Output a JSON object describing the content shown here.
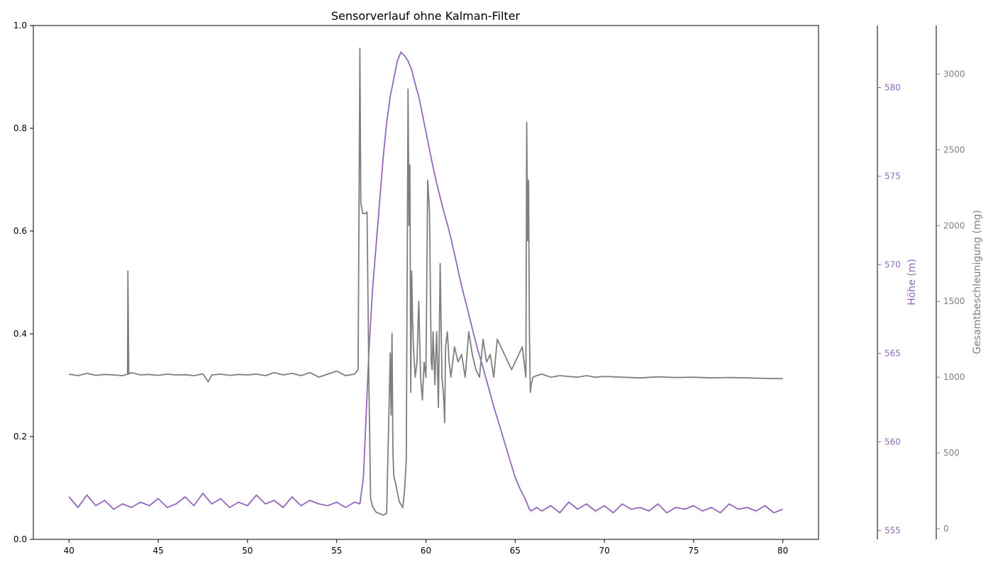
{
  "chart_data": {
    "type": "line",
    "title": "Sensorverlauf ohne Kalman-Filter",
    "xlabel": "",
    "ylabel": "",
    "x_range": [
      38,
      82
    ],
    "x_ticks": [
      40,
      45,
      50,
      55,
      60,
      65,
      70,
      75,
      80
    ],
    "y_left": {
      "range": [
        0,
        1
      ],
      "ticks": [
        0.0,
        0.2,
        0.4,
        0.6,
        0.8,
        1.0
      ],
      "tick_labels": [
        "0.0",
        "0.2",
        "0.4",
        "0.6",
        "0.8",
        "1.0"
      ]
    },
    "y_altitude": {
      "label": "Höhe (m)",
      "range": [
        554.5,
        583.5
      ],
      "ticks": [
        555,
        560,
        565,
        570,
        575,
        580
      ],
      "color": "#9467bd"
    },
    "y_acceleration": {
      "label": "Gesamtbeschleunigung (mg)",
      "range": [
        -70,
        3320
      ],
      "ticks": [
        0,
        500,
        1000,
        1500,
        2000,
        2500,
        3000
      ],
      "color": "#7f7f7f"
    },
    "grid": false,
    "legend": "none",
    "series": [
      {
        "axis": "y_altitude",
        "color": "#9467bd",
        "x": [
          40.0,
          40.5,
          41.0,
          41.5,
          42.0,
          42.5,
          43.0,
          43.5,
          44.0,
          44.5,
          45.0,
          45.5,
          46.0,
          46.5,
          47.0,
          47.5,
          48.0,
          48.5,
          49.0,
          49.5,
          50.0,
          50.5,
          51.0,
          51.5,
          52.0,
          52.5,
          53.0,
          53.5,
          54.0,
          54.5,
          55.0,
          55.5,
          56.0,
          56.3,
          56.5,
          56.8,
          57.0,
          57.2,
          57.4,
          57.6,
          57.8,
          58.0,
          58.2,
          58.4,
          58.6,
          58.8,
          59.0,
          59.2,
          59.4,
          59.6,
          59.8,
          60.0,
          60.2,
          60.4,
          60.6,
          60.8,
          61.0,
          61.2,
          61.4,
          61.6,
          61.8,
          62.0,
          62.3,
          62.6,
          62.9,
          63.2,
          63.5,
          63.8,
          64.1,
          64.4,
          64.7,
          65.0,
          65.3,
          65.6,
          65.8,
          65.9,
          66.2,
          66.5,
          67.0,
          67.5,
          68.0,
          68.5,
          69.0,
          69.5,
          70.0,
          70.5,
          71.0,
          71.5,
          72.0,
          72.5,
          73.0,
          73.5,
          74.0,
          74.5,
          75.0,
          75.5,
          76.0,
          76.5,
          77.0,
          77.5,
          78.0,
          78.5,
          79.0,
          79.5,
          80.0
        ],
        "values": [
          556.9,
          556.3,
          557.0,
          556.4,
          556.7,
          556.2,
          556.5,
          556.3,
          556.6,
          556.4,
          556.8,
          556.3,
          556.5,
          556.9,
          556.4,
          557.1,
          556.5,
          556.8,
          556.3,
          556.6,
          556.4,
          557.0,
          556.5,
          556.7,
          556.3,
          556.9,
          556.4,
          556.7,
          556.5,
          556.4,
          556.6,
          556.3,
          556.6,
          556.5,
          558.0,
          565.0,
          568.5,
          571.0,
          573.5,
          576.0,
          578.0,
          579.5,
          580.5,
          581.5,
          582.0,
          581.8,
          581.5,
          581.0,
          580.2,
          579.5,
          578.5,
          577.5,
          576.5,
          575.5,
          574.6,
          573.8,
          573.0,
          572.3,
          571.5,
          570.6,
          569.7,
          568.8,
          567.6,
          566.4,
          565.2,
          564.2,
          563.1,
          562.0,
          561.0,
          560.0,
          559.0,
          558.0,
          557.3,
          556.7,
          556.2,
          556.1,
          556.3,
          556.1,
          556.4,
          556.0,
          556.6,
          556.2,
          556.5,
          556.1,
          556.4,
          556.0,
          556.5,
          556.2,
          556.3,
          556.1,
          556.5,
          556.0,
          556.3,
          556.2,
          556.4,
          556.1,
          556.3,
          556.0,
          556.5,
          556.2,
          556.3,
          556.1,
          556.4,
          556.0,
          556.2
        ]
      },
      {
        "axis": "y_acceleration",
        "color": "#7f7f7f",
        "x": [
          40.0,
          40.5,
          41.0,
          41.5,
          42.0,
          42.5,
          43.0,
          43.28,
          43.3,
          43.35,
          43.5,
          44.0,
          44.5,
          45.0,
          45.5,
          46.0,
          46.5,
          47.0,
          47.5,
          47.8,
          48.0,
          48.5,
          49.0,
          49.5,
          50.0,
          50.5,
          51.0,
          51.5,
          52.0,
          52.5,
          53.0,
          53.5,
          54.0,
          54.5,
          55.0,
          55.5,
          56.0,
          56.2,
          56.3,
          56.35,
          56.45,
          56.6,
          56.7,
          56.8,
          56.9,
          57.0,
          57.2,
          57.4,
          57.6,
          57.8,
          58.0,
          58.05,
          58.1,
          58.15,
          58.2,
          58.3,
          58.5,
          58.7,
          58.8,
          58.9,
          59.0,
          59.05,
          59.1,
          59.15,
          59.2,
          59.25,
          59.3,
          59.4,
          59.5,
          59.6,
          59.7,
          59.8,
          59.9,
          60.0,
          60.1,
          60.2,
          60.3,
          60.35,
          60.4,
          60.5,
          60.6,
          60.7,
          60.8,
          60.9,
          61.0,
          61.05,
          61.1,
          61.2,
          61.3,
          61.4,
          61.6,
          61.8,
          62.0,
          62.2,
          62.4,
          62.6,
          62.8,
          63.0,
          63.2,
          63.4,
          63.6,
          63.8,
          64.0,
          64.2,
          64.4,
          64.6,
          64.8,
          65.0,
          65.2,
          65.4,
          65.6,
          65.65,
          65.7,
          65.75,
          65.8,
          65.85,
          65.9,
          66.0,
          66.2,
          66.5,
          67.0,
          67.5,
          68.0,
          68.5,
          69.0,
          69.5,
          70.0,
          71.0,
          72.0,
          73.0,
          74.0,
          75.0,
          76.0,
          77.0,
          78.0,
          79.0,
          80.0
        ],
        "values": [
          1020,
          1010,
          1025,
          1012,
          1018,
          1015,
          1010,
          1020,
          1700,
          1020,
          1030,
          1015,
          1018,
          1012,
          1020,
          1015,
          1016,
          1010,
          1022,
          970,
          1015,
          1020,
          1012,
          1018,
          1015,
          1020,
          1010,
          1030,
          1015,
          1025,
          1010,
          1030,
          1000,
          1020,
          1040,
          1010,
          1020,
          1050,
          3170,
          2150,
          2080,
          2080,
          2090,
          1000,
          200,
          150,
          110,
          100,
          90,
          100,
          1160,
          750,
          1290,
          500,
          350,
          300,
          180,
          140,
          250,
          450,
          2900,
          2000,
          2400,
          900,
          1700,
          1400,
          1200,
          1000,
          1100,
          1500,
          1000,
          850,
          1100,
          1000,
          2300,
          2100,
          1100,
          1050,
          1300,
          950,
          1300,
          800,
          1750,
          1000,
          850,
          700,
          1200,
          1300,
          1100,
          1000,
          1200,
          1100,
          1150,
          1000,
          1300,
          1150,
          1050,
          1000,
          1250,
          1100,
          1150,
          1000,
          1250,
          1200,
          1150,
          1100,
          1050,
          1100,
          1150,
          1200,
          1000,
          2680,
          1900,
          2300,
          1300,
          900,
          950,
          1000,
          1010,
          1020,
          1000,
          1010,
          1005,
          1000,
          1010,
          1000,
          1005,
          1000,
          995,
          1002,
          998,
          1000,
          995,
          998,
          995,
          992,
          990
        ]
      }
    ]
  }
}
